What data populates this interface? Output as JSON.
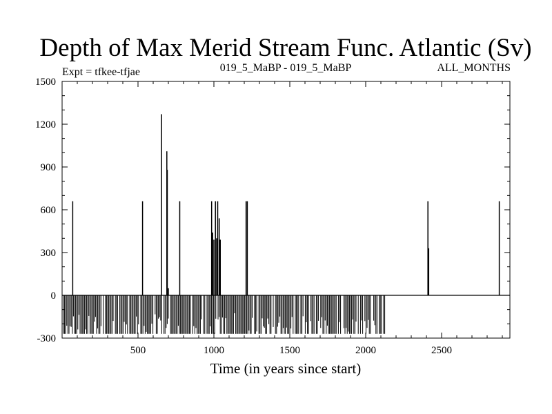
{
  "chart_data": {
    "type": "bar",
    "title": "Depth of Max Merid Stream Func. Atlantic (Sv)",
    "left_label": "Expt = tfkee-tfjae",
    "center_label": "019_5_MaBP - 019_5_MaBP",
    "right_label": "ALL_MONTHS",
    "xlabel": "Time (in years since start)",
    "ylabel": "",
    "xlim": [
      0,
      2950
    ],
    "ylim": [
      -300,
      1500
    ],
    "xticks": [
      500,
      1000,
      1500,
      2000,
      2500
    ],
    "yticks": [
      -300,
      0,
      300,
      600,
      900,
      1200,
      1500
    ],
    "grid": false,
    "baseline": 0,
    "color": "#000000",
    "negative_band": {
      "x_start": 0,
      "x_end": 2140,
      "min": -270
    },
    "positive_spikes": [
      {
        "x": 70,
        "value": 660
      },
      {
        "x": 530,
        "value": 660
      },
      {
        "x": 655,
        "value": 1270
      },
      {
        "x": 690,
        "value": 1010
      },
      {
        "x": 693,
        "value": 880
      },
      {
        "x": 700,
        "value": 50
      },
      {
        "x": 775,
        "value": 660
      },
      {
        "x": 985,
        "value": 660
      },
      {
        "x": 992,
        "value": 440
      },
      {
        "x": 1000,
        "value": 390
      },
      {
        "x": 1010,
        "value": 660
      },
      {
        "x": 1018,
        "value": 400
      },
      {
        "x": 1025,
        "value": 660
      },
      {
        "x": 1035,
        "value": 540
      },
      {
        "x": 1042,
        "value": 390
      },
      {
        "x": 1212,
        "value": 660
      },
      {
        "x": 1220,
        "value": 660
      },
      {
        "x": 2410,
        "value": 660
      },
      {
        "x": 2415,
        "value": 330
      },
      {
        "x": 2880,
        "value": 660
      }
    ]
  }
}
